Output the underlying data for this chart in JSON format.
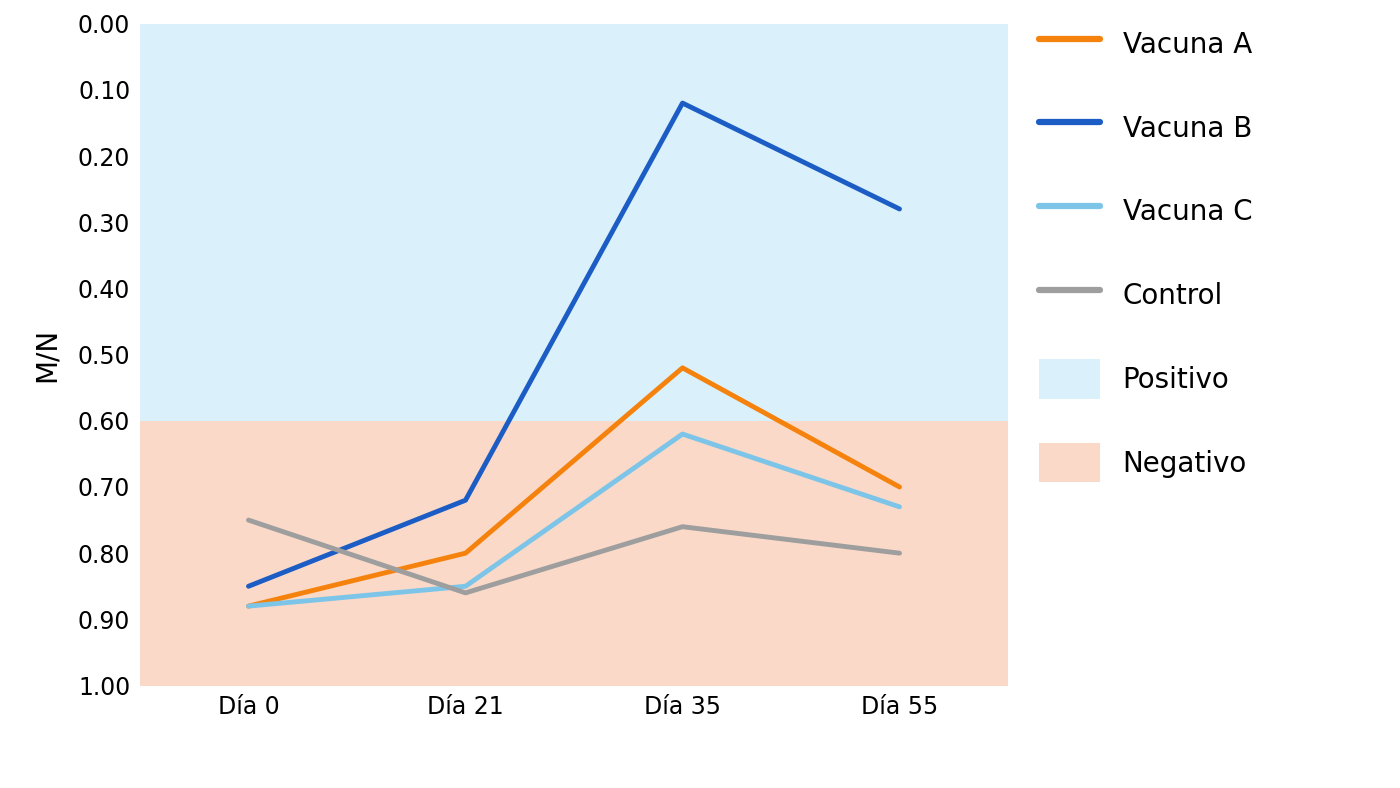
{
  "x_labels": [
    "Día 0",
    "Día 21",
    "Día 35",
    "Día 55"
  ],
  "x_positions": [
    0,
    1,
    2,
    3
  ],
  "vacuna_a": [
    0.88,
    0.8,
    0.52,
    0.7
  ],
  "vacuna_b": [
    0.85,
    0.72,
    0.12,
    0.28
  ],
  "vacuna_c": [
    0.88,
    0.85,
    0.62,
    0.73
  ],
  "control": [
    0.75,
    0.86,
    0.76,
    0.8
  ],
  "color_vacuna_a": "#F5820D",
  "color_vacuna_b": "#1B5DC4",
  "color_vacuna_c": "#7DC5E8",
  "color_control": "#9E9E9E",
  "color_positivo_bg": "#DAF0FA",
  "color_negativo_bg": "#FAD9C8",
  "cutoff": 0.6,
  "ylim_min": 0.0,
  "ylim_max": 1.0,
  "yticks": [
    0.0,
    0.1,
    0.2,
    0.3,
    0.4,
    0.5,
    0.6,
    0.7,
    0.8,
    0.9,
    1.0
  ],
  "ylabel": "M/N",
  "linewidth": 3.5,
  "legend_fontsize": 20,
  "tick_fontsize": 17,
  "ylabel_fontsize": 20,
  "background_color": "#FFFFFF"
}
